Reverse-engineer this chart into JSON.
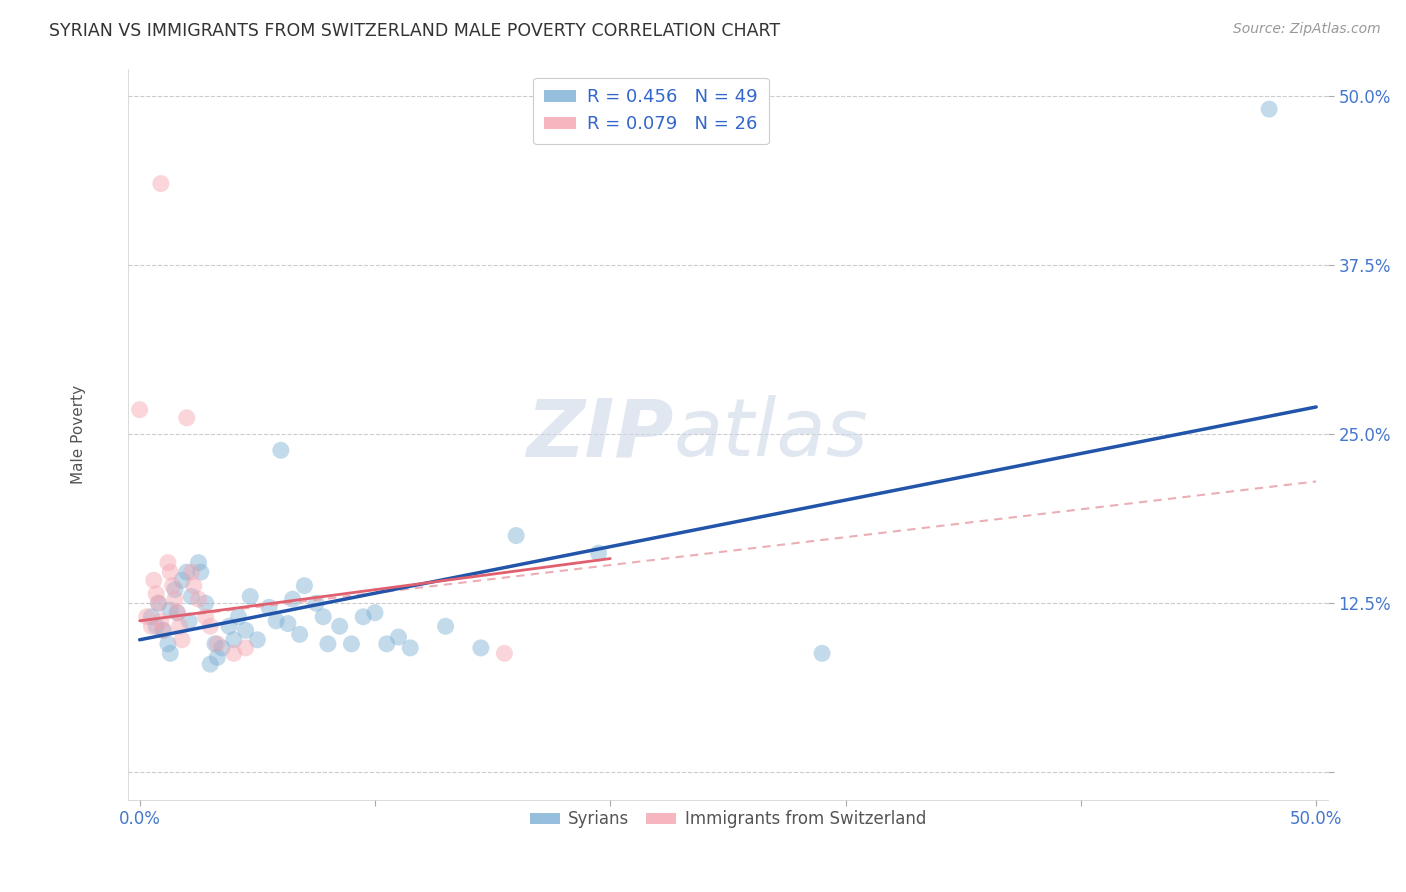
{
  "title": "SYRIAN VS IMMIGRANTS FROM SWITZERLAND MALE POVERTY CORRELATION CHART",
  "source": "Source: ZipAtlas.com",
  "ylabel_label": "Male Poverty",
  "xlim": [
    -0.005,
    0.505
  ],
  "ylim": [
    -0.02,
    0.52
  ],
  "xtick_vals": [
    0.0,
    0.1,
    0.2,
    0.3,
    0.4,
    0.5
  ],
  "xtick_labels": [
    "0.0%",
    "",
    "",
    "",
    "",
    "50.0%"
  ],
  "ytick_vals": [
    0.0,
    0.125,
    0.25,
    0.375,
    0.5
  ],
  "ytick_labels": [
    "",
    "12.5%",
    "25.0%",
    "37.5%",
    "50.0%"
  ],
  "blue_scatter": [
    [
      0.005,
      0.115
    ],
    [
      0.007,
      0.108
    ],
    [
      0.008,
      0.125
    ],
    [
      0.01,
      0.105
    ],
    [
      0.012,
      0.095
    ],
    [
      0.013,
      0.088
    ],
    [
      0.013,
      0.12
    ],
    [
      0.015,
      0.135
    ],
    [
      0.016,
      0.118
    ],
    [
      0.018,
      0.142
    ],
    [
      0.02,
      0.148
    ],
    [
      0.021,
      0.112
    ],
    [
      0.022,
      0.13
    ],
    [
      0.025,
      0.155
    ],
    [
      0.026,
      0.148
    ],
    [
      0.028,
      0.125
    ],
    [
      0.03,
      0.08
    ],
    [
      0.032,
      0.095
    ],
    [
      0.033,
      0.085
    ],
    [
      0.035,
      0.092
    ],
    [
      0.038,
      0.108
    ],
    [
      0.04,
      0.098
    ],
    [
      0.042,
      0.115
    ],
    [
      0.045,
      0.105
    ],
    [
      0.047,
      0.13
    ],
    [
      0.05,
      0.098
    ],
    [
      0.055,
      0.122
    ],
    [
      0.058,
      0.112
    ],
    [
      0.06,
      0.238
    ],
    [
      0.063,
      0.11
    ],
    [
      0.065,
      0.128
    ],
    [
      0.068,
      0.102
    ],
    [
      0.07,
      0.138
    ],
    [
      0.075,
      0.125
    ],
    [
      0.078,
      0.115
    ],
    [
      0.08,
      0.095
    ],
    [
      0.085,
      0.108
    ],
    [
      0.09,
      0.095
    ],
    [
      0.095,
      0.115
    ],
    [
      0.1,
      0.118
    ],
    [
      0.105,
      0.095
    ],
    [
      0.11,
      0.1
    ],
    [
      0.115,
      0.092
    ],
    [
      0.13,
      0.108
    ],
    [
      0.145,
      0.092
    ],
    [
      0.16,
      0.175
    ],
    [
      0.195,
      0.162
    ],
    [
      0.29,
      0.088
    ],
    [
      0.48,
      0.49
    ]
  ],
  "pink_scatter": [
    [
      0.003,
      0.115
    ],
    [
      0.005,
      0.108
    ],
    [
      0.006,
      0.142
    ],
    [
      0.007,
      0.132
    ],
    [
      0.008,
      0.125
    ],
    [
      0.009,
      0.112
    ],
    [
      0.01,
      0.105
    ],
    [
      0.012,
      0.155
    ],
    [
      0.013,
      0.148
    ],
    [
      0.014,
      0.138
    ],
    [
      0.015,
      0.128
    ],
    [
      0.016,
      0.118
    ],
    [
      0.017,
      0.108
    ],
    [
      0.018,
      0.098
    ],
    [
      0.02,
      0.262
    ],
    [
      0.022,
      0.148
    ],
    [
      0.023,
      0.138
    ],
    [
      0.025,
      0.128
    ],
    [
      0.028,
      0.115
    ],
    [
      0.03,
      0.108
    ],
    [
      0.033,
      0.095
    ],
    [
      0.04,
      0.088
    ],
    [
      0.045,
      0.092
    ],
    [
      0.155,
      0.088
    ],
    [
      0.009,
      0.435
    ],
    [
      0.0,
      0.268
    ]
  ],
  "blue_line_x": [
    0.0,
    0.5
  ],
  "blue_line_y": [
    0.098,
    0.27
  ],
  "pink_solid_line_x": [
    0.0,
    0.2
  ],
  "pink_solid_line_y": [
    0.112,
    0.158
  ],
  "pink_dash_line_x": [
    0.0,
    0.5
  ],
  "pink_dash_line_y": [
    0.112,
    0.215
  ],
  "watermark_zip": "ZIP",
  "watermark_atlas": "atlas",
  "scatter_size": 150,
  "scatter_alpha": 0.45,
  "blue_color": "#7bafd4",
  "pink_color": "#f4a4b0",
  "blue_line_color": "#2255aa",
  "pink_solid_color": "#e06070",
  "pink_dash_color": "#e8a0a8",
  "background_color": "#ffffff",
  "grid_color": "#cccccc",
  "legend_blue_label": "R = 0.456   N = 49",
  "legend_pink_label": "R = 0.079   N = 26",
  "bottom_label1": "Syrians",
  "bottom_label2": "Immigrants from Switzerland"
}
